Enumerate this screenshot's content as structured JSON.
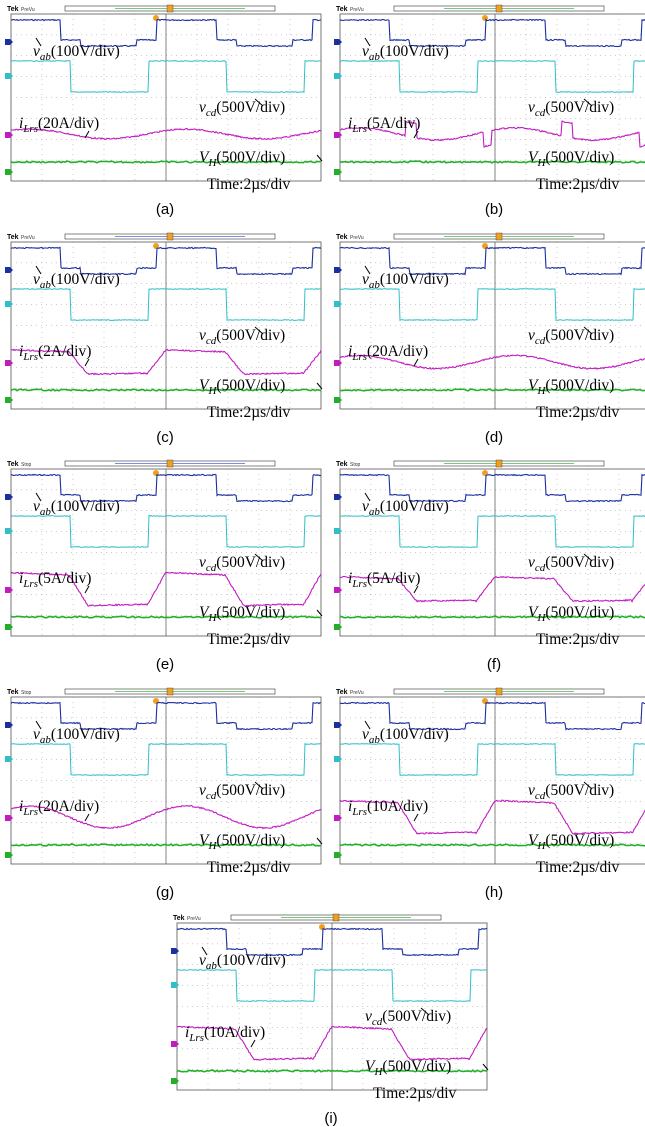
{
  "figure": {
    "panels": [
      {
        "caption": "(a)",
        "status": "PreVu",
        "vab_scale": "(100V/div)",
        "vcd_scale": "(500V/div)",
        "ilrs_scale": "(20A/div)",
        "vh_scale": "(500V/div)",
        "time_scale": "Time:2µs/div",
        "current_shape": "smooth",
        "current_amplitude": 0.22
      },
      {
        "caption": "(b)",
        "status": "PreVu",
        "vab_scale": "(100V/div)",
        "vcd_scale": "(500V/div)",
        "ilrs_scale": "(5A/div)",
        "vh_scale": "(500V/div)",
        "time_scale": "Time:2µs/div",
        "current_shape": "spiky",
        "current_amplitude": 0.55
      },
      {
        "caption": "(c)",
        "status": "PreVu",
        "vab_scale": "(100V/div)",
        "vcd_scale": "(500V/div)",
        "ilrs_scale": "(2A/div)",
        "vh_scale": "(500V/div)",
        "time_scale": "Time:2µs/div",
        "current_shape": "trapezoid",
        "current_amplitude": 0.55
      },
      {
        "caption": "(d)",
        "status": "PreVu",
        "vab_scale": "(100V/div)",
        "vcd_scale": "(500V/div)",
        "ilrs_scale": "(20A/div)",
        "vh_scale": "(500V/div)",
        "time_scale": "Time:2µs/div",
        "current_shape": "smooth",
        "current_amplitude": 0.3
      },
      {
        "caption": "(e)",
        "status": "Stop",
        "vab_scale": "(100V/div)",
        "vcd_scale": "(500V/div)",
        "ilrs_scale": "(5A/div)",
        "vh_scale": "(500V/div)",
        "time_scale": "Time:2µs/div",
        "current_shape": "trapezoid",
        "current_amplitude": 0.75
      },
      {
        "caption": "(f)",
        "status": "Stop",
        "vab_scale": "(100V/div)",
        "vcd_scale": "(500V/div)",
        "ilrs_scale": "(5A/div)",
        "vh_scale": "(500V/div)",
        "time_scale": "Time:2µs/div",
        "current_shape": "trapezoid",
        "current_amplitude": 0.55
      },
      {
        "caption": "(g)",
        "status": "Stop",
        "vab_scale": "(100V/div)",
        "vcd_scale": "(500V/div)",
        "ilrs_scale": "(20A/div)",
        "vh_scale": "(500V/div)",
        "time_scale": "Time:2µs/div",
        "current_shape": "smooth",
        "current_amplitude": 0.5
      },
      {
        "caption": "(h)",
        "status": "PreVu",
        "vab_scale": "(100V/div)",
        "vcd_scale": "(500V/div)",
        "ilrs_scale": "(10A/div)",
        "vh_scale": "(500V/div)",
        "time_scale": "Time:2µs/div",
        "current_shape": "trapezoid",
        "current_amplitude": 0.75
      },
      {
        "caption": "(i)",
        "status": "PreVu",
        "vab_scale": "(100V/div)",
        "vcd_scale": "(500V/div)",
        "ilrs_scale": "(10A/div)",
        "vh_scale": "(500V/div)",
        "time_scale": "Time:2µs/div",
        "current_shape": "trapezoid",
        "current_amplitude": 0.75
      }
    ]
  },
  "colors": {
    "vab": "#1c2fa0",
    "vcd": "#2fbfc8",
    "ilrs": "#c21bc0",
    "vh": "#22b02a",
    "grid": "#9a9a9a",
    "trigger": "#f0a020"
  },
  "chart_data": {
    "type": "line",
    "scope_brand": "Tek",
    "series_labels": {
      "vab": "v_ab",
      "vcd": "v_cd",
      "ilrs": "i_Lrs",
      "vh": "V_H"
    },
    "grid": true
  }
}
